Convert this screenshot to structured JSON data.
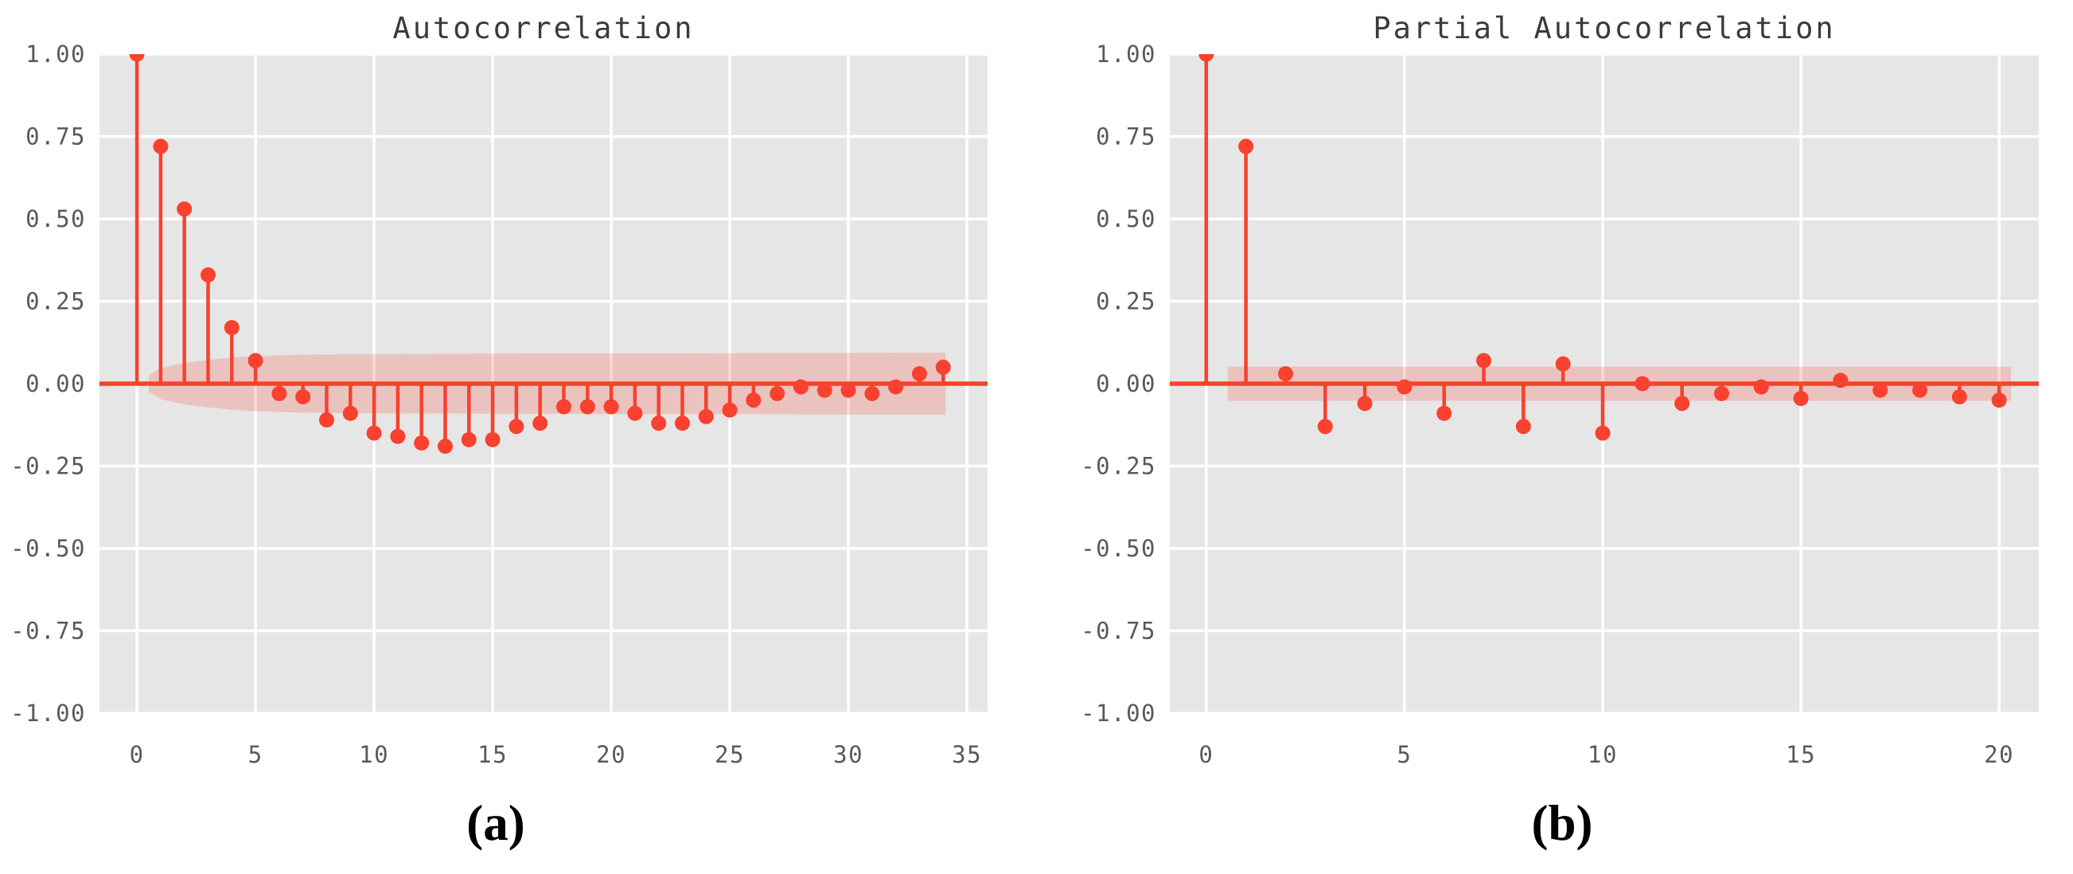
{
  "figure_labels": {
    "a": "(a)",
    "b": "(b)"
  },
  "colors": {
    "stem_red": "#F8412E",
    "band_fill": "#F8412E",
    "band_opacity": 0.21,
    "plot_background": "#E6E6E6",
    "gridline": "#FFFFFF",
    "tick_text": "#595959",
    "title_text": "#3B3B3B",
    "page_background": "#FFFFFF"
  },
  "chart_data": [
    {
      "type": "stem",
      "title": "Autocorrelation",
      "xlabel": "",
      "ylabel": "",
      "x": [
        0,
        1,
        2,
        3,
        4,
        5,
        6,
        7,
        8,
        9,
        10,
        11,
        12,
        13,
        14,
        15,
        16,
        17,
        18,
        19,
        20,
        21,
        22,
        23,
        24,
        25,
        26,
        27,
        28,
        29,
        30,
        31,
        32,
        33,
        34
      ],
      "values": [
        1.0,
        0.72,
        0.53,
        0.33,
        0.17,
        0.07,
        -0.03,
        -0.04,
        -0.11,
        -0.09,
        -0.15,
        -0.16,
        -0.18,
        -0.19,
        -0.17,
        -0.17,
        -0.13,
        -0.12,
        -0.07,
        -0.07,
        -0.07,
        -0.09,
        -0.12,
        -0.12,
        -0.1,
        -0.08,
        -0.05,
        -0.03,
        -0.01,
        -0.02,
        -0.02,
        -0.03,
        -0.01,
        0.03,
        0.05
      ],
      "confidence_band": {
        "lags": [
          0.5,
          1.0,
          2.0,
          3.0,
          4.0,
          5.0,
          7.0,
          10.0,
          14.0,
          20.0,
          28.0,
          34.1
        ],
        "half_widths": [
          0.025,
          0.047,
          0.063,
          0.072,
          0.079,
          0.084,
          0.088,
          0.09,
          0.091,
          0.092,
          0.093,
          0.094
        ]
      },
      "xticks": [
        0,
        5,
        10,
        15,
        20,
        25,
        30,
        35
      ],
      "xtick_labels": [
        "0",
        "5",
        "10",
        "15",
        "20",
        "25",
        "30",
        "35"
      ],
      "yticks": [
        1.0,
        0.75,
        0.5,
        0.25,
        0.0,
        -0.25,
        -0.5,
        -0.75,
        -1.0
      ],
      "ytick_labels": [
        "1.00",
        "0.75",
        "0.50",
        "0.25",
        "0.00",
        "-0.25",
        "-0.50",
        "-0.75",
        "-1.00"
      ],
      "xlim": [
        -1.58,
        35.87
      ],
      "ylim": [
        -1,
        1
      ],
      "grid": true,
      "legend": null
    },
    {
      "type": "stem",
      "title": "Partial Autocorrelation",
      "xlabel": "",
      "ylabel": "",
      "x": [
        0,
        1,
        2,
        3,
        4,
        5,
        6,
        7,
        8,
        9,
        10,
        11,
        12,
        13,
        14,
        15,
        16,
        17,
        18,
        19,
        20
      ],
      "values": [
        1.0,
        0.72,
        0.03,
        -0.13,
        -0.06,
        -0.01,
        -0.09,
        0.07,
        -0.13,
        0.06,
        -0.15,
        0.0,
        -0.06,
        -0.03,
        -0.01,
        -0.045,
        0.01,
        -0.02,
        -0.02,
        -0.04,
        -0.05
      ],
      "confidence_band": {
        "lags": [
          0.54,
          20.3
        ],
        "half_widths": [
          0.052,
          0.052
        ]
      },
      "xticks": [
        0,
        5,
        10,
        15,
        20
      ],
      "xtick_labels": [
        "0",
        "5",
        "10",
        "15",
        "20"
      ],
      "yticks": [
        1.0,
        0.75,
        0.5,
        0.25,
        0.0,
        -0.25,
        -0.5,
        -0.75,
        -1.0
      ],
      "ytick_labels": [
        "1.00",
        "0.75",
        "0.50",
        "0.25",
        "0.00",
        "-0.25",
        "-0.50",
        "-0.75",
        "-1.00"
      ],
      "xlim": [
        -0.92,
        21.0
      ],
      "ylim": [
        -1,
        1
      ],
      "grid": true,
      "legend": null
    }
  ]
}
